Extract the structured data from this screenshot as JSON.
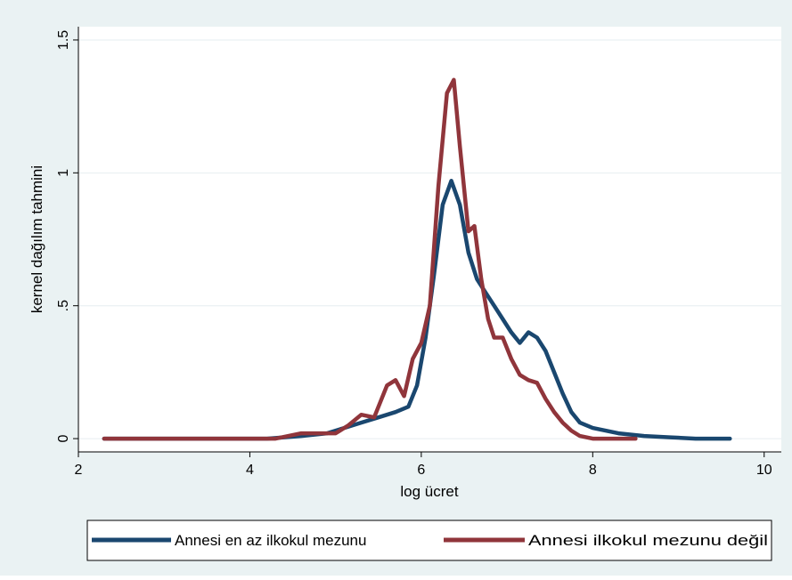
{
  "chart_data": {
    "type": "line",
    "title": "",
    "xlabel": "log ücret",
    "ylabel": "kernel dağılım tahmini",
    "xlim": [
      2,
      10.2
    ],
    "ylim": [
      -0.05,
      1.55
    ],
    "x_ticks": [
      {
        "value": 2,
        "label": "2"
      },
      {
        "value": 4,
        "label": "4"
      },
      {
        "value": 6,
        "label": "6"
      },
      {
        "value": 8,
        "label": "8"
      },
      {
        "value": 10,
        "label": "10"
      }
    ],
    "y_ticks": [
      {
        "value": 0,
        "label": "0"
      },
      {
        "value": 0.5,
        "label": ".5"
      },
      {
        "value": 1,
        "label": "1"
      },
      {
        "value": 1.5,
        "label": "1.5"
      }
    ],
    "grid": true,
    "legend_position": "bottom",
    "series": [
      {
        "name": "Annesi en az ilkokul mezunu",
        "color": "#1a476f",
        "x": [
          2.3,
          2.6,
          3.0,
          3.3,
          3.8,
          4.2,
          4.6,
          4.9,
          5.1,
          5.3,
          5.5,
          5.7,
          5.85,
          5.95,
          6.05,
          6.15,
          6.25,
          6.35,
          6.45,
          6.55,
          6.65,
          6.75,
          6.85,
          6.95,
          7.05,
          7.15,
          7.25,
          7.35,
          7.45,
          7.55,
          7.65,
          7.75,
          7.85,
          8.0,
          8.3,
          8.6,
          8.9,
          9.2,
          9.6
        ],
        "y": [
          0.0,
          0.0,
          0.0,
          0.0,
          0.0,
          0.0,
          0.01,
          0.02,
          0.04,
          0.06,
          0.08,
          0.1,
          0.12,
          0.2,
          0.38,
          0.62,
          0.88,
          0.97,
          0.88,
          0.7,
          0.6,
          0.55,
          0.5,
          0.45,
          0.4,
          0.36,
          0.4,
          0.38,
          0.33,
          0.25,
          0.17,
          0.1,
          0.06,
          0.04,
          0.02,
          0.01,
          0.005,
          0.0,
          0.0
        ]
      },
      {
        "name": "Annesi ilkokul mezunu değil",
        "color": "#90353b",
        "x": [
          2.3,
          2.8,
          3.3,
          3.8,
          4.3,
          4.6,
          4.8,
          5.0,
          5.15,
          5.3,
          5.45,
          5.6,
          5.7,
          5.8,
          5.9,
          6.0,
          6.1,
          6.2,
          6.3,
          6.38,
          6.45,
          6.55,
          6.62,
          6.7,
          6.78,
          6.85,
          6.95,
          7.05,
          7.15,
          7.25,
          7.35,
          7.45,
          7.55,
          7.65,
          7.75,
          7.85,
          8.0,
          8.3,
          8.5
        ],
        "y": [
          0.0,
          0.0,
          0.0,
          0.0,
          0.0,
          0.02,
          0.02,
          0.02,
          0.05,
          0.09,
          0.08,
          0.2,
          0.22,
          0.16,
          0.3,
          0.36,
          0.5,
          0.95,
          1.3,
          1.35,
          1.1,
          0.78,
          0.8,
          0.6,
          0.45,
          0.38,
          0.38,
          0.3,
          0.24,
          0.22,
          0.21,
          0.15,
          0.1,
          0.06,
          0.03,
          0.01,
          0.0,
          0.0,
          0.0
        ]
      }
    ]
  }
}
